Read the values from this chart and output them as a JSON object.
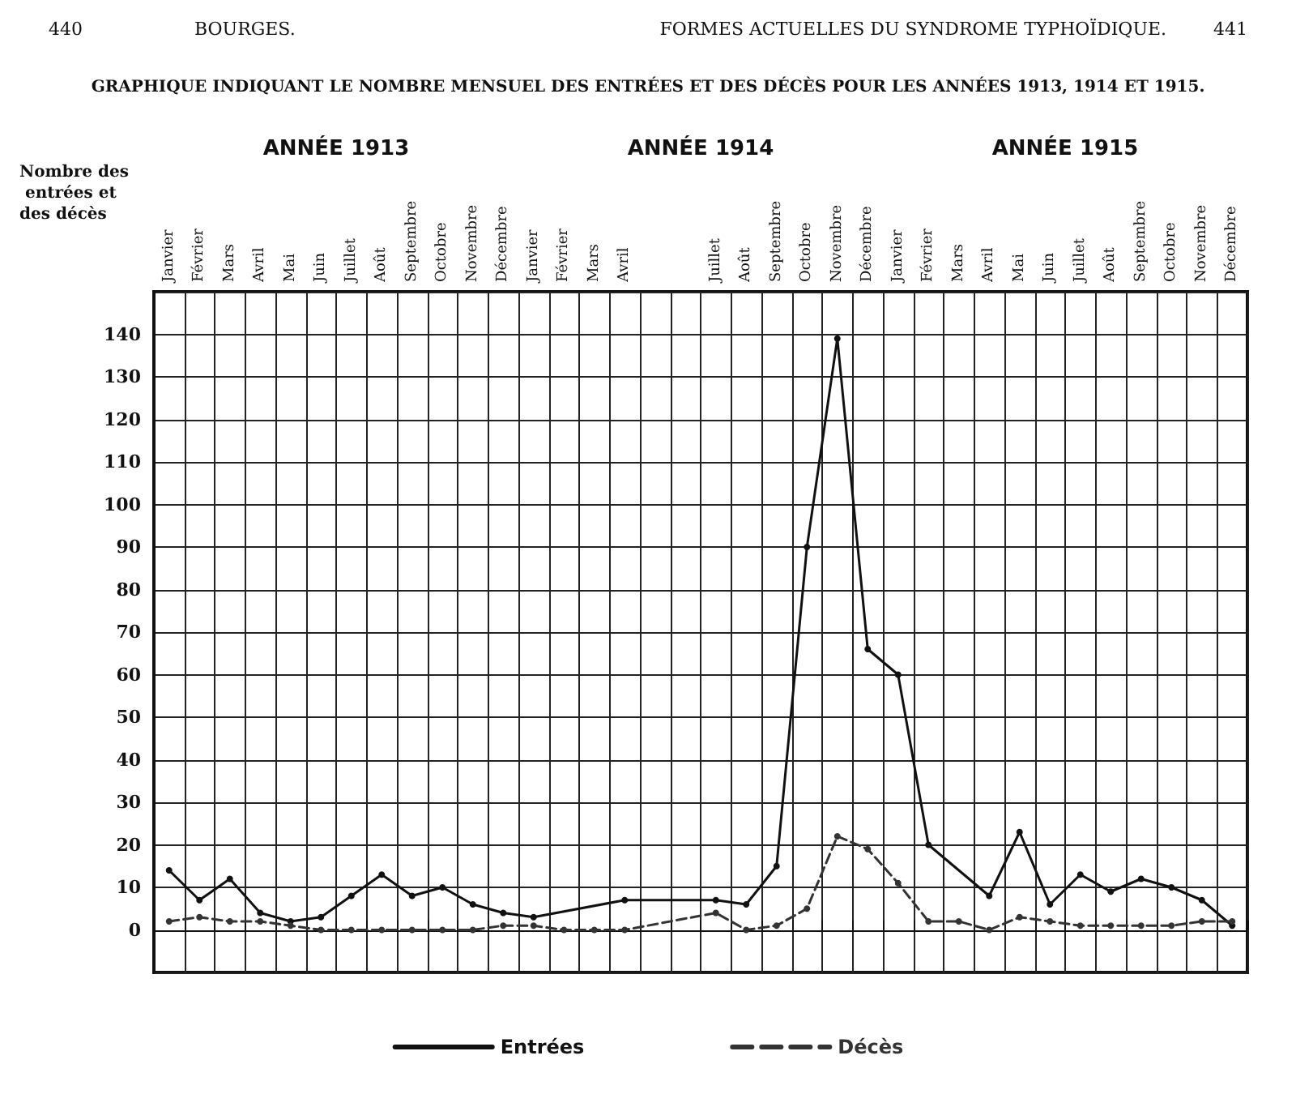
{
  "chart_data": {
    "type": "line",
    "title": "GRAPHIQUE INDIQUANT LE NOMBRE MENSUEL DES ENTRÉES ET DES DÉCÈS POUR LES ANNÉES 1913, 1914 ET 1915.",
    "ylabel": "Nombre des entrées et des décès",
    "annotations": [
      "440",
      "BOURGES.",
      "FORMES ACTUELLES DU SYNDROME TYPHOÏDIQUE.",
      "441",
      "ANNÉE 1913",
      "ANNÉE 1914",
      "ANNÉE 1915"
    ],
    "categories": [
      "Janvier",
      "Février",
      "Mars",
      "Avril",
      "Mai",
      "Juin",
      "Juillet",
      "Août",
      "Septembre",
      "Octobre",
      "Novembre",
      "Décembre",
      "Janvier",
      "Février",
      "Mars",
      "Avril",
      null,
      null,
      "Juillet",
      "Août",
      "Septembre",
      "Octobre",
      "Novembre",
      "Décembre",
      "Janvier",
      "Février",
      "Mars",
      "Avril",
      "Mai",
      "Juin",
      "Juillet",
      "Août",
      "Septembre",
      "Octobre",
      "Novembre",
      "Décembre"
    ],
    "series": [
      {
        "name": "Entrées",
        "color": "#111111",
        "line_style": "solid",
        "values": [
          14,
          7,
          12,
          4,
          2,
          3,
          8,
          13,
          8,
          10,
          6,
          4,
          3,
          null,
          null,
          7,
          null,
          null,
          7,
          6,
          15,
          90,
          139,
          66,
          60,
          20,
          null,
          8,
          23,
          6,
          13,
          9,
          12,
          10,
          7,
          1
        ]
      },
      {
        "name": "Décès",
        "color": "#333333",
        "line_style": "dashed",
        "values": [
          2,
          3,
          2,
          2,
          1,
          0,
          0,
          0,
          0,
          0,
          0,
          1,
          1,
          0,
          0,
          0,
          null,
          null,
          4,
          0,
          1,
          5,
          22,
          19,
          11,
          2,
          2,
          0,
          3,
          2,
          1,
          1,
          1,
          1,
          2,
          2
        ]
      }
    ],
    "ylim": [
      -10,
      150
    ],
    "yticks": [
      0,
      10,
      20,
      30,
      40,
      50,
      60,
      70,
      80,
      90,
      100,
      110,
      120,
      130,
      140
    ],
    "grid": true,
    "legend": "bottom",
    "marker": "circle"
  }
}
